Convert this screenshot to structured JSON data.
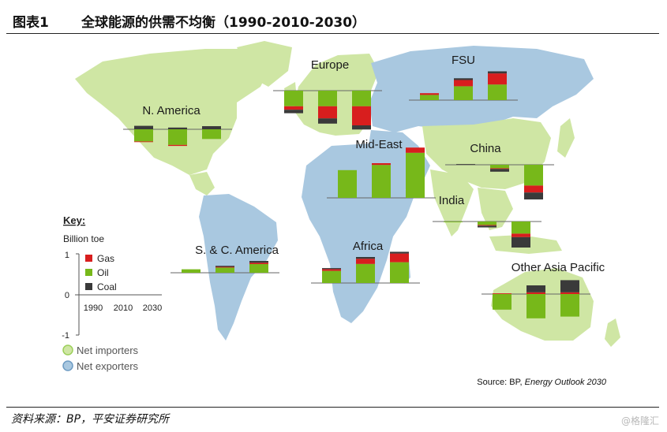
{
  "figure": {
    "label": "图表1",
    "title": "全球能源的供需不均衡（1990-2010-2030）"
  },
  "source": {
    "prefix": "Source: BP, ",
    "publication": "Energy Outlook 2030"
  },
  "footer": {
    "text": "资料来源：BP，平安证券研究所"
  },
  "watermark": {
    "text": "@格隆汇"
  },
  "key": {
    "title": "Key:",
    "unit": "Billion toe",
    "y_ticks": [
      "1",
      "0",
      "-1"
    ],
    "years": [
      "1990",
      "2010",
      "2030"
    ],
    "fuels": [
      "Gas",
      "Oil",
      "Coal"
    ],
    "status": [
      "Net importers",
      "Net exporters"
    ]
  },
  "colors": {
    "gas": "#d81e1e",
    "oil": "#77b81a",
    "coal": "#3a3a3a",
    "importer_land": "#cfe6a4",
    "exporter_land": "#a9c8e0"
  },
  "chart_data": {
    "type": "bar",
    "title": "",
    "unit": "Billion toe",
    "categories": [
      "1990",
      "2010",
      "2030"
    ],
    "stack_order": [
      "Oil",
      "Gas",
      "Coal"
    ],
    "ylim": [
      -1,
      1
    ],
    "regions": [
      {
        "name": "N. America",
        "status": "Net importers",
        "series": [
          {
            "name": "Oil",
            "values": [
              -0.35,
              -0.45,
              -0.28
            ]
          },
          {
            "name": "Gas",
            "values": [
              -0.02,
              -0.03,
              0.0
            ]
          },
          {
            "name": "Coal",
            "values": [
              0.1,
              0.05,
              0.09
            ]
          }
        ]
      },
      {
        "name": "Europe",
        "status": "Net importers",
        "series": [
          {
            "name": "Oil",
            "values": [
              -0.45,
              -0.45,
              -0.45
            ]
          },
          {
            "name": "Gas",
            "values": [
              -0.1,
              -0.35,
              -0.55
            ]
          },
          {
            "name": "Coal",
            "values": [
              -0.1,
              -0.15,
              -0.12
            ]
          }
        ]
      },
      {
        "name": "FSU",
        "status": "Net exporters",
        "series": [
          {
            "name": "Oil",
            "values": [
              0.15,
              0.4,
              0.45
            ]
          },
          {
            "name": "Gas",
            "values": [
              0.05,
              0.18,
              0.32
            ]
          },
          {
            "name": "Coal",
            "values": [
              0.0,
              0.05,
              0.06
            ]
          }
        ]
      },
      {
        "name": "Mid-East",
        "status": "Net exporters",
        "series": [
          {
            "name": "Oil",
            "values": [
              0.8,
              0.95,
              1.3
            ]
          },
          {
            "name": "Gas",
            "values": [
              0.0,
              0.05,
              0.15
            ]
          },
          {
            "name": "Coal",
            "values": [
              0.0,
              0.0,
              0.0
            ]
          }
        ]
      },
      {
        "name": "China",
        "status": "Net importers",
        "series": [
          {
            "name": "Oil",
            "values": [
              0.0,
              -0.1,
              -0.6
            ]
          },
          {
            "name": "Gas",
            "values": [
              0.0,
              -0.02,
              -0.2
            ]
          },
          {
            "name": "Coal",
            "values": [
              0.02,
              -0.08,
              -0.2
            ]
          }
        ]
      },
      {
        "name": "India",
        "status": "Net importers",
        "series": [
          {
            "name": "Oil",
            "values": [
              -0.02,
              -0.1,
              -0.35
            ]
          },
          {
            "name": "Gas",
            "values": [
              0.0,
              -0.02,
              -0.1
            ]
          },
          {
            "name": "Coal",
            "values": [
              0.0,
              -0.05,
              -0.3
            ]
          }
        ]
      },
      {
        "name": "S. & C. America",
        "status": "Net exporters",
        "series": [
          {
            "name": "Oil",
            "values": [
              0.1,
              0.15,
              0.25
            ]
          },
          {
            "name": "Gas",
            "values": [
              0.0,
              0.02,
              0.04
            ]
          },
          {
            "name": "Coal",
            "values": [
              0.0,
              0.03,
              0.05
            ]
          }
        ]
      },
      {
        "name": "Africa",
        "status": "Net exporters",
        "series": [
          {
            "name": "Oil",
            "values": [
              0.35,
              0.55,
              0.6
            ]
          },
          {
            "name": "Gas",
            "values": [
              0.05,
              0.15,
              0.25
            ]
          },
          {
            "name": "Coal",
            "values": [
              0.03,
              0.05,
              0.05
            ]
          }
        ]
      },
      {
        "name": "Other Asia Pacific",
        "status": "Net importers",
        "series": [
          {
            "name": "Oil",
            "values": [
              -0.45,
              -0.7,
              -0.65
            ]
          },
          {
            "name": "Gas",
            "values": [
              0.02,
              0.05,
              0.05
            ]
          },
          {
            "name": "Coal",
            "values": [
              0.0,
              0.2,
              0.35
            ]
          }
        ]
      }
    ]
  }
}
